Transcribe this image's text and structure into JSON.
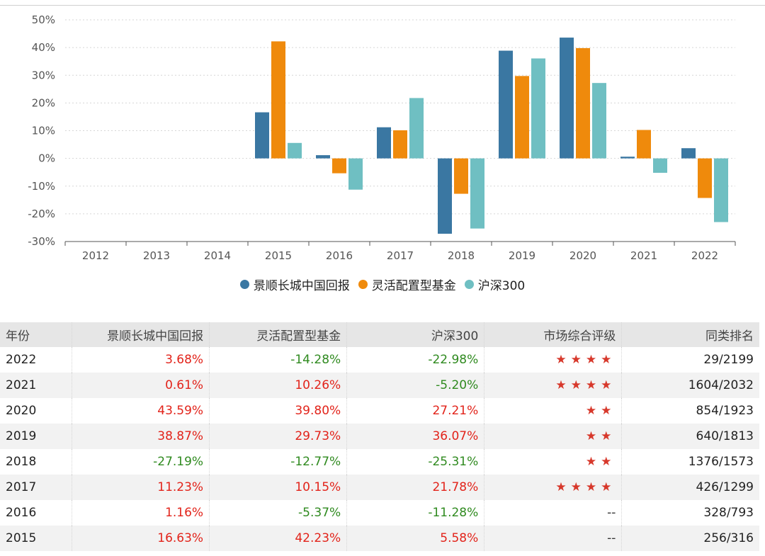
{
  "chart_data": {
    "type": "bar",
    "categories": [
      "2012",
      "2013",
      "2014",
      "2015",
      "2016",
      "2017",
      "2018",
      "2019",
      "2020",
      "2021",
      "2022"
    ],
    "series": [
      {
        "name": "景顺长城中国回报",
        "color": "#3a77a2",
        "values": [
          null,
          null,
          null,
          16.63,
          1.16,
          11.23,
          -27.19,
          38.87,
          43.59,
          0.61,
          3.68
        ]
      },
      {
        "name": "灵活配置型基金",
        "color": "#ef8a0c",
        "values": [
          null,
          null,
          null,
          42.23,
          -5.37,
          10.15,
          -12.77,
          29.73,
          39.8,
          10.26,
          -14.28
        ]
      },
      {
        "name": "沪深300",
        "color": "#6fbfc2",
        "values": [
          null,
          null,
          null,
          5.58,
          -11.28,
          21.78,
          -25.31,
          36.07,
          27.21,
          -5.2,
          -22.98
        ]
      }
    ],
    "yticks": [
      "50%",
      "40%",
      "30%",
      "20%",
      "10%",
      "0%",
      "-10%",
      "-20%",
      "-30%"
    ],
    "ylim": [
      -30,
      50
    ],
    "legend_position": "bottom-center",
    "grid": true
  },
  "table": {
    "headers": [
      "年份",
      "景顺长城中国回报",
      "灵活配置型基金",
      "沪深300",
      "市场综合评级",
      "同类排名"
    ],
    "rows": [
      {
        "year": "2022",
        "fund": "3.68%",
        "cat": "-14.28%",
        "idx": "-22.98%",
        "stars": 4,
        "rank": "29/2199"
      },
      {
        "year": "2021",
        "fund": "0.61%",
        "cat": "10.26%",
        "idx": "-5.20%",
        "stars": 4,
        "rank": "1604/2032"
      },
      {
        "year": "2020",
        "fund": "43.59%",
        "cat": "39.80%",
        "idx": "27.21%",
        "stars": 2,
        "rank": "854/1923"
      },
      {
        "year": "2019",
        "fund": "38.87%",
        "cat": "29.73%",
        "idx": "36.07%",
        "stars": 2,
        "rank": "640/1813"
      },
      {
        "year": "2018",
        "fund": "-27.19%",
        "cat": "-12.77%",
        "idx": "-25.31%",
        "stars": 2,
        "rank": "1376/1573"
      },
      {
        "year": "2017",
        "fund": "11.23%",
        "cat": "10.15%",
        "idx": "21.78%",
        "stars": 4,
        "rank": "426/1299"
      },
      {
        "year": "2016",
        "fund": "1.16%",
        "cat": "-5.37%",
        "idx": "-11.28%",
        "stars": 0,
        "rank": "328/793"
      },
      {
        "year": "2015",
        "fund": "16.63%",
        "cat": "42.23%",
        "idx": "5.58%",
        "stars": 0,
        "rank": "256/316"
      }
    ],
    "no_rating_text": "--",
    "star_glyph": "★"
  },
  "colors": {
    "positive": "#e2231a",
    "negative": "#2f8a1f",
    "star": "#d7382b"
  }
}
